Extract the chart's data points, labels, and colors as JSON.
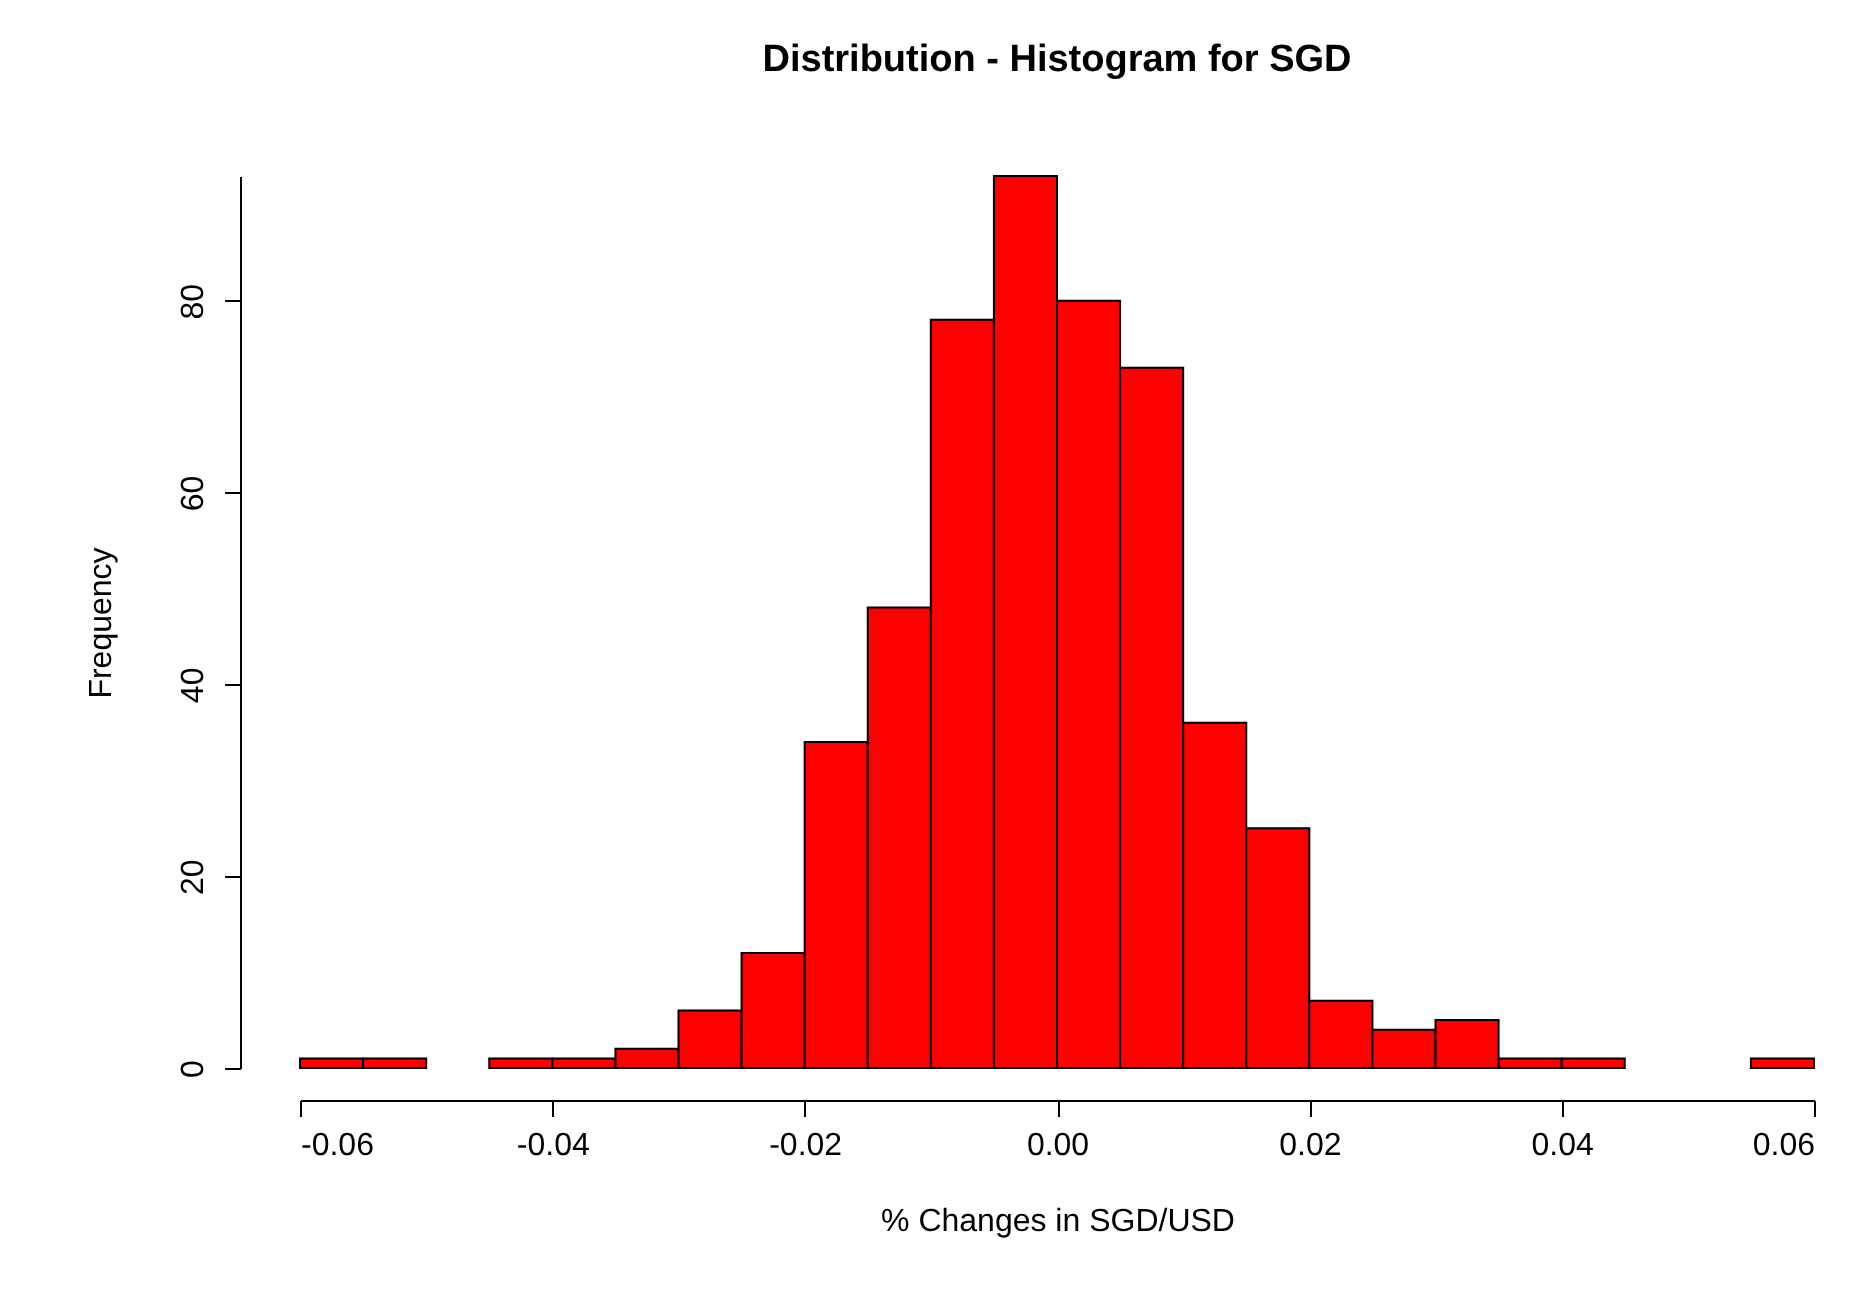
{
  "chart_data": {
    "type": "histogram",
    "title": "Distribution - Histogram for SGD",
    "xlabel": "% Changes in SGD/USD",
    "ylabel": "Frequency",
    "bins": [
      -0.06,
      -0.055,
      -0.05,
      -0.045,
      -0.04,
      -0.035,
      -0.03,
      -0.025,
      -0.02,
      -0.015,
      -0.01,
      -0.005,
      0,
      0.005,
      0.01,
      0.015,
      0.02,
      0.025,
      0.03,
      0.035,
      0.04,
      0.045,
      0.05,
      0.055,
      0.06
    ],
    "values": [
      1,
      1,
      0,
      1,
      1,
      2,
      6,
      12,
      34,
      48,
      78,
      93,
      80,
      73,
      36,
      25,
      7,
      4,
      5,
      1,
      1,
      0,
      0,
      1
    ],
    "color": "#ff0000",
    "xlim": [
      -0.06,
      0.06
    ],
    "xticks": [
      {
        "value": -0.06,
        "label": "-0.06"
      },
      {
        "value": -0.04,
        "label": "-0.04"
      },
      {
        "value": -0.02,
        "label": "-0.02"
      },
      {
        "value": 0,
        "label": "0.00"
      },
      {
        "value": 0.02,
        "label": "0.02"
      },
      {
        "value": 0.04,
        "label": "0.04"
      },
      {
        "value": 0.06,
        "label": "0.06"
      }
    ],
    "ylim": [
      0,
      93
    ],
    "yticks": [
      0,
      20,
      40,
      60,
      80
    ],
    "grid": false
  }
}
